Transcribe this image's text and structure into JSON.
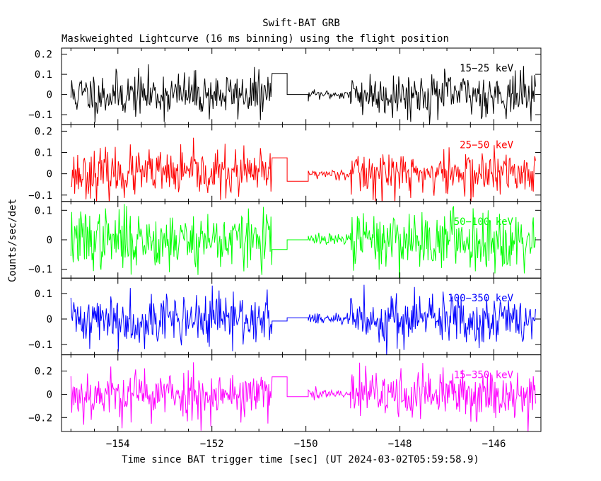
{
  "title": "Swift-BAT GRB",
  "subtitle": "Maskweighted Lightcurve (16 ms binning) using the flight position",
  "xlabel": "Time since BAT trigger time [sec] (UT 2024-03-02T05:59:58.9)",
  "ylabel": "Counts/sec/det",
  "chart_data": {
    "type": "line",
    "title": "Swift-BAT GRB",
    "subtitle": "Maskweighted Lightcurve (16 ms binning) using the flight position",
    "xlabel": "Time since BAT trigger time [sec] (UT 2024-03-02T05:59:58.9)",
    "ylabel": "Counts/sec/det",
    "xlim": [
      -155.2,
      -145.0
    ],
    "x_ticks": [
      -154,
      -152,
      -150,
      -148,
      -146
    ],
    "x_tick_labels": [
      "−154",
      "−152",
      "−150",
      "−148",
      "−146"
    ],
    "bin_width_s": 0.016,
    "segments": [
      {
        "start": -155.0,
        "end": -150.72,
        "kind": "noise"
      },
      {
        "start": -150.72,
        "end": -150.4,
        "kind": "step_high"
      },
      {
        "start": -150.4,
        "end": -149.95,
        "kind": "step_low"
      },
      {
        "start": -149.95,
        "end": -149.05,
        "kind": "quiet"
      },
      {
        "start": -149.05,
        "end": -145.1,
        "kind": "noise"
      }
    ],
    "series": [
      {
        "name": "15−25 keV",
        "color": "#000000",
        "ylim": [
          -0.15,
          0.23
        ],
        "y_ticks": [
          -0.1,
          0,
          0.1,
          0.2
        ],
        "y_tick_labels": [
          "−0.1",
          "0",
          "0.1",
          "0.2"
        ],
        "noise_sigma": 0.055,
        "quiet_sigma": 0.012,
        "step_high": 0.105,
        "step_low": 0.0,
        "seed": 11
      },
      {
        "name": "25−50 keV",
        "color": "#ff0000",
        "ylim": [
          -0.13,
          0.23
        ],
        "y_ticks": [
          -0.1,
          0,
          0.1,
          0.2
        ],
        "y_tick_labels": [
          "−0.1",
          "0",
          "0.1",
          "0.2"
        ],
        "noise_sigma": 0.055,
        "quiet_sigma": 0.012,
        "step_high": 0.075,
        "step_low": -0.035,
        "seed": 23
      },
      {
        "name": "50−100 keV",
        "color": "#00ff00",
        "ylim": [
          -0.13,
          0.13
        ],
        "y_ticks": [
          -0.1,
          0,
          0.1
        ],
        "y_tick_labels": [
          "−0.1",
          "0",
          "0.1"
        ],
        "noise_sigma": 0.05,
        "quiet_sigma": 0.01,
        "step_high": -0.033,
        "step_low": 0.0,
        "seed": 37
      },
      {
        "name": "100−350 keV",
        "color": "#0000ff",
        "ylim": [
          -0.14,
          0.16
        ],
        "y_ticks": [
          -0.1,
          0,
          0.1
        ],
        "y_tick_labels": [
          "−0.1",
          "0",
          "0.1"
        ],
        "noise_sigma": 0.05,
        "quiet_sigma": 0.012,
        "step_high": -0.008,
        "step_low": 0.005,
        "seed": 41
      },
      {
        "name": "15−350 keV",
        "color": "#ff00ff",
        "ylim": [
          -0.32,
          0.34
        ],
        "y_ticks": [
          -0.2,
          0,
          0.2
        ],
        "y_tick_labels": [
          "−0.2",
          "0",
          "0.2"
        ],
        "noise_sigma": 0.11,
        "quiet_sigma": 0.025,
        "step_high": 0.15,
        "step_low": -0.02,
        "seed": 53
      }
    ]
  }
}
